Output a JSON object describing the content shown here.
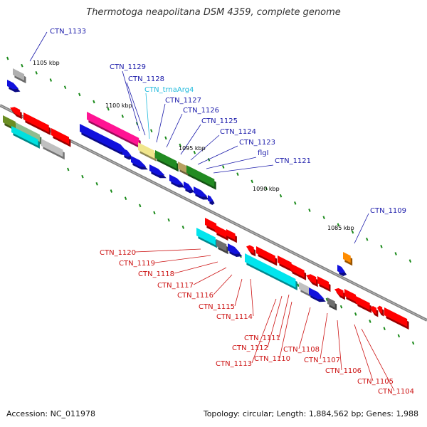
{
  "title": "Thermotoga neapolitana DSM 4359, complete genome",
  "accession": "Accession: NC_011978",
  "summary": "Topology: circular; Length: 1,884,562 bp; Genes: 1,988",
  "colors": {
    "backbone": "#7f7f7f",
    "tick": "#1a8a1a",
    "forward_label": "#1a1aaa",
    "reverse_label": "#cc1111",
    "rna_label": "#22bbdd"
  },
  "scale_labels": [
    {
      "id": "kb1105",
      "text": "1105 kbp"
    },
    {
      "id": "kb1100",
      "text": "1100 kbp"
    },
    {
      "id": "kb1095",
      "text": "1095 kbp"
    },
    {
      "id": "kb1090",
      "text": "1090 kbp"
    },
    {
      "id": "kb1085",
      "text": "1085 kbp"
    }
  ],
  "forward_labels": [
    {
      "id": "ctn1133",
      "text": "CTN_1133"
    },
    {
      "id": "ctn1129",
      "text": "CTN_1129"
    },
    {
      "id": "ctn1128",
      "text": "CTN_1128"
    },
    {
      "id": "trna",
      "text": "CTN_trnaArg4"
    },
    {
      "id": "ctn1127",
      "text": "CTN_1127"
    },
    {
      "id": "ctn1126",
      "text": "CTN_1126"
    },
    {
      "id": "ctn1125",
      "text": "CTN_1125"
    },
    {
      "id": "ctn1124",
      "text": "CTN_1124"
    },
    {
      "id": "ctn1123",
      "text": "CTN_1123"
    },
    {
      "id": "flgl",
      "text": "flgI"
    },
    {
      "id": "ctn1121",
      "text": "CTN_1121"
    },
    {
      "id": "ctn1109",
      "text": "CTN_1109"
    }
  ],
  "reverse_labels": [
    {
      "id": "ctn1120",
      "text": "CTN_1120"
    },
    {
      "id": "ctn1119",
      "text": "CTN_1119"
    },
    {
      "id": "ctn1118",
      "text": "CTN_1118"
    },
    {
      "id": "ctn1117",
      "text": "CTN_1117"
    },
    {
      "id": "ctn1116",
      "text": "CTN_1116"
    },
    {
      "id": "ctn1115",
      "text": "CTN_1115"
    },
    {
      "id": "ctn1114",
      "text": "CTN_1114"
    },
    {
      "id": "ctn1111",
      "text": "CTN_1111"
    },
    {
      "id": "ctn1112",
      "text": "CTN_1112"
    },
    {
      "id": "ctn1113",
      "text": "CTN_1113"
    },
    {
      "id": "ctn1110",
      "text": "CTN_1110"
    },
    {
      "id": "ctn1108",
      "text": "CTN_1108"
    },
    {
      "id": "ctn1107",
      "text": "CTN_1107"
    },
    {
      "id": "ctn1106",
      "text": "CTN_1106"
    },
    {
      "id": "ctn1105",
      "text": "CTN_1105"
    },
    {
      "id": "ctn1104",
      "text": "CTN_1104"
    }
  ]
}
